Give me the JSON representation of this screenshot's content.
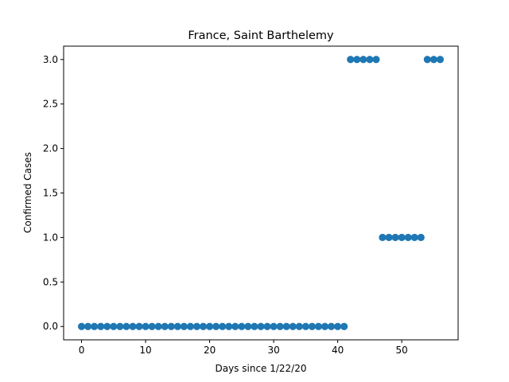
{
  "chart_data": {
    "type": "scatter",
    "title": "France, Saint Barthelemy",
    "xlabel": "Days since 1/22/20",
    "ylabel": "Confirmed Cases",
    "xlim": [
      -2.8,
      58.8
    ],
    "ylim": [
      -0.15,
      3.15
    ],
    "xticks": [
      0,
      10,
      20,
      30,
      40,
      50
    ],
    "xtick_labels": [
      "0",
      "10",
      "20",
      "30",
      "40",
      "50"
    ],
    "yticks": [
      0,
      0.5,
      1,
      1.5,
      2,
      2.5,
      3
    ],
    "ytick_labels": [
      "0.0",
      "0.5",
      "1.0",
      "1.5",
      "2.0",
      "2.5",
      "3.0"
    ],
    "grid": false,
    "marker_color": "#1f77b4",
    "series": [
      {
        "x": [
          0,
          1,
          2,
          3,
          4,
          5,
          6,
          7,
          8,
          9,
          10,
          11,
          12,
          13,
          14,
          15,
          16,
          17,
          18,
          19,
          20,
          21,
          22,
          23,
          24,
          25,
          26,
          27,
          28,
          29,
          30,
          31,
          32,
          33,
          34,
          35,
          36,
          37,
          38,
          39,
          40,
          41,
          42,
          43,
          44,
          45,
          46,
          47,
          48,
          49,
          50,
          51,
          52,
          53,
          54,
          55,
          56
        ],
        "y": [
          0,
          0,
          0,
          0,
          0,
          0,
          0,
          0,
          0,
          0,
          0,
          0,
          0,
          0,
          0,
          0,
          0,
          0,
          0,
          0,
          0,
          0,
          0,
          0,
          0,
          0,
          0,
          0,
          0,
          0,
          0,
          0,
          0,
          0,
          0,
          0,
          0,
          0,
          0,
          0,
          0,
          0,
          3,
          3,
          3,
          3,
          3,
          1,
          1,
          1,
          1,
          1,
          1,
          1,
          3,
          3,
          3
        ]
      }
    ]
  }
}
